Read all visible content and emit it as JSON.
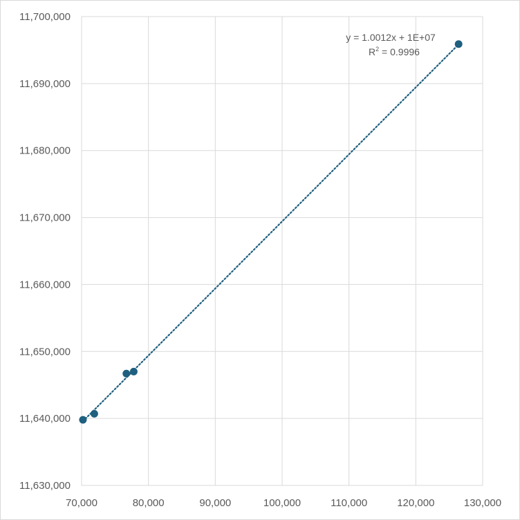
{
  "chart_data": {
    "type": "scatter",
    "title": "",
    "xlabel": "",
    "ylabel": "",
    "xlim": [
      70000,
      130000
    ],
    "ylim": [
      11630000,
      11700000
    ],
    "x_ticks": [
      70000,
      80000,
      90000,
      100000,
      110000,
      120000,
      130000
    ],
    "y_ticks": [
      11630000,
      11640000,
      11650000,
      11660000,
      11670000,
      11680000,
      11690000,
      11700000
    ],
    "x_tick_labels": [
      "70,000",
      "80,000",
      "90,000",
      "100,000",
      "110,000",
      "120,000",
      "130,000"
    ],
    "y_tick_labels": [
      "11,630,000",
      "11,640,000",
      "11,650,000",
      "11,660,000",
      "11,670,000",
      "11,680,000",
      "11,690,000",
      "11,700,000"
    ],
    "grid": true,
    "legend": "none",
    "series": [
      {
        "color": "#1f5f80",
        "points": [
          {
            "x": 70200,
            "y": 11639800
          },
          {
            "x": 71900,
            "y": 11640700
          },
          {
            "x": 76700,
            "y": 11646700
          },
          {
            "x": 77800,
            "y": 11647000
          },
          {
            "x": 126400,
            "y": 11695900
          }
        ]
      }
    ],
    "trendline": {
      "type": "linear",
      "style": "dotted",
      "color": "#1f5f80",
      "slope": 1.0012,
      "intercept": 11569300,
      "x_range": [
        70200,
        126400
      ],
      "equation_label": "y = 1.0012x + 1E+07",
      "r2_label_prefix": "R",
      "r2_label_sup": "2",
      "r2_label_value": " = 0.9996"
    },
    "colors": {
      "grid": "#d9d9d9",
      "axis_text": "#595959"
    }
  }
}
